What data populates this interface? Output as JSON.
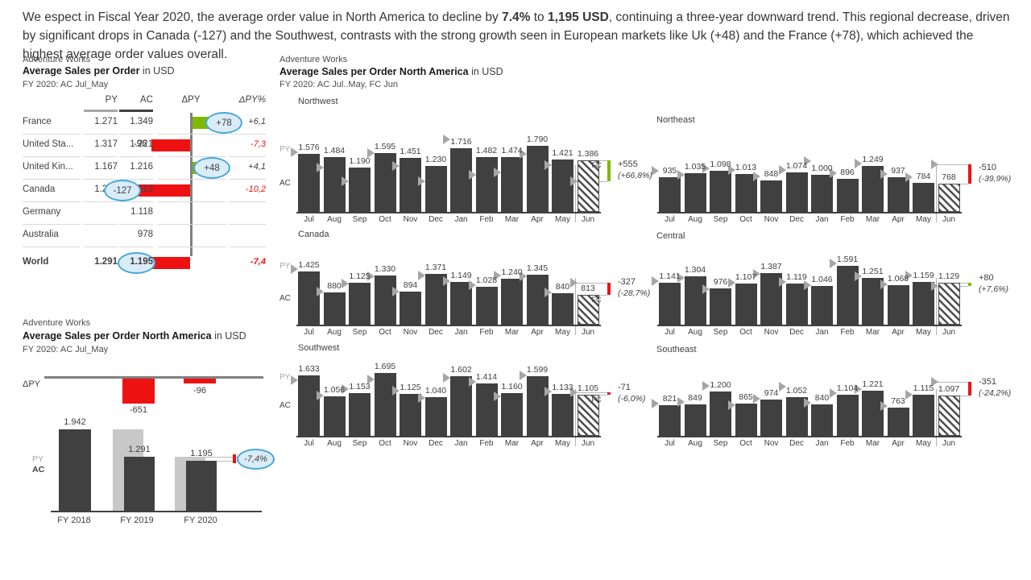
{
  "intro": {
    "segments": [
      {
        "t": "We espect in Fiscal Year 2020, the average order value in North America to decline by ",
        "b": false
      },
      {
        "t": "7.4%",
        "b": true
      },
      {
        "t": " to ",
        "b": false
      },
      {
        "t": "1,195 USD",
        "b": true
      },
      {
        "t": ", continuing a three-year downward trend. This regional decrease, driven by significant drops in Canada (-127) and the Southwest, contrasts with the strong growth seen in European markets like Uk (+48) and the France (+78), which achieved the highest average order values overall.",
        "b": false
      }
    ]
  },
  "colors": {
    "dark": "#404040",
    "py_gray": "#c8c8c8",
    "marker": "#a6a6a6",
    "red": "#ee1111",
    "green": "#7fb800",
    "circle_border": "#4aa8d8",
    "circle_fill": "#daecf8",
    "axis": "#808080",
    "separator": "#d9d9d9",
    "connector": "#b8b8b8",
    "text": "#404040",
    "muted": "#4d4d4d"
  },
  "chart_data": [
    {
      "type": "table",
      "source": "Adventure Works",
      "title": "Average Sales per Order",
      "title_suffix": " in USD",
      "subtitle": "FY 2020: AC Jul_May",
      "columns": [
        "PY",
        "AC",
        "ΔPY",
        "ΔPY%"
      ],
      "rows": [
        {
          "name": "France",
          "py": "1.271",
          "ac": "1.349",
          "delta": 78,
          "delta_label": "+78",
          "pct": "+6,1",
          "circle": "delta",
          "bold": false
        },
        {
          "name": "United Sta...",
          "py": "1.317",
          "ac": "1.221",
          "delta": -96,
          "delta_label": "-96",
          "pct": "-7,3",
          "circle": null,
          "bold": false
        },
        {
          "name": "United Kin...",
          "py": "1.167",
          "ac": "1.216",
          "delta": 48,
          "delta_label": "+48",
          "pct": "+4,1",
          "circle": "delta",
          "bold": false
        },
        {
          "name": "Canada",
          "py": "1.246",
          "ac": "1.119",
          "delta": -127,
          "delta_label": "-127",
          "pct": "-10,2",
          "circle": "delta",
          "bold": false
        },
        {
          "name": "Germany",
          "py": "",
          "ac": "1.118",
          "delta": null,
          "delta_label": "",
          "pct": "",
          "circle": null,
          "bold": false
        },
        {
          "name": "Australia",
          "py": "",
          "ac": "978",
          "delta": null,
          "delta_label": "",
          "pct": "",
          "circle": null,
          "bold": false
        },
        {
          "name": "World",
          "py": "1.291",
          "ac": "1.195",
          "delta": -96,
          "delta_label": "-96",
          "pct": "-7,4",
          "circle": "ac",
          "bold": true
        }
      ]
    },
    {
      "type": "bar",
      "source": "Adventure Works",
      "title": "Average Sales per Order North America",
      "title_suffix": " in USD",
      "subtitle": "FY 2020: AC Jul_May",
      "delta_axis_label": "ΔPY",
      "legend": [
        "PY",
        "AC"
      ],
      "categories": [
        "FY 2018",
        "FY 2019",
        "FY 2020"
      ],
      "py": [
        null,
        1942,
        1291
      ],
      "ac": [
        1942,
        1291,
        1195
      ],
      "delta": [
        null,
        -651,
        -96
      ],
      "delta_labels": [
        "",
        "-651",
        "-96"
      ],
      "annotation": "-7,4%"
    },
    {
      "type": "bar",
      "source": "Adventure Works",
      "title": "Average Sales per Order North America",
      "title_suffix": " in USD",
      "subtitle": "FY 2020: AC Jul..May, FC Jun",
      "x": [
        "Jul",
        "Aug",
        "Sep",
        "Oct",
        "Nov",
        "Dec",
        "Jan",
        "Feb",
        "Mar",
        "Apr",
        "May",
        "Jun"
      ],
      "legend": [
        "PY",
        "AC"
      ],
      "fc_label": "FC",
      "charts": [
        {
          "name": "Northwest",
          "ac": [
            1576,
            1484,
            1190,
            1595,
            1451,
            1230,
            1716,
            1482,
            1474,
            1790,
            1421,
            1386
          ],
          "py": [
            1600,
            1200,
            820,
            1580,
            1230,
            830,
            1960,
            1010,
            1060,
            1570,
            1260,
            831
          ],
          "delta_label": "+555",
          "pct_label": "(+66,8%)",
          "positive": true,
          "show_fc": true,
          "show_legend": true
        },
        {
          "name": "Northeast",
          "ac": [
            935,
            1035,
            1098,
            1013,
            848,
            1074,
            1000,
            896,
            1249,
            937,
            784,
            768
          ],
          "py": [
            1100,
            1000,
            1180,
            1130,
            960,
            1130,
            1360,
            1040,
            1310,
            1020,
            940,
            1278
          ],
          "delta_label": "-510",
          "pct_label": "(-39,9%)",
          "positive": false,
          "show_fc": false,
          "show_legend": false
        },
        {
          "name": "Canada",
          "ac": [
            1425,
            880,
            1125,
            1330,
            894,
            1371,
            1149,
            1028,
            1240,
            1345,
            840,
            813
          ],
          "py": [
            1500,
            900,
            1110,
            1300,
            890,
            1330,
            1170,
            1060,
            1330,
            1310,
            860,
            1140
          ],
          "delta_label": "-327",
          "pct_label": "(-28,7%)",
          "positive": false,
          "show_fc": true,
          "show_legend": true
        },
        {
          "name": "Central",
          "ac": [
            1141,
            1304,
            976,
            1107,
            1387,
            1119,
            1046,
            1591,
            1251,
            1068,
            1159,
            1129
          ],
          "py": [
            1170,
            1260,
            960,
            1130,
            1360,
            1160,
            1060,
            1650,
            1300,
            1090,
            1320,
            1049
          ],
          "delta_label": "+80",
          "pct_label": "(+7,6%)",
          "positive": true,
          "show_fc": false,
          "show_legend": false
        },
        {
          "name": "Southwest",
          "ac": [
            1633,
            1056,
            1153,
            1695,
            1125,
            1040,
            1602,
            1414,
            1160,
            1599,
            1133,
            1105
          ],
          "py": [
            1500,
            1090,
            1260,
            1530,
            1210,
            1030,
            1570,
            1460,
            1070,
            1620,
            1190,
            1176
          ],
          "delta_label": "-71",
          "pct_label": "(-6,0%)",
          "positive": false,
          "show_fc": true,
          "show_legend": true
        },
        {
          "name": "Southeast",
          "ac": [
            821,
            849,
            1200,
            865,
            974,
            1052,
            840,
            1104,
            1221,
            763,
            1115,
            1097
          ],
          "py": [
            870,
            920,
            1350,
            830,
            1000,
            1330,
            890,
            1160,
            1270,
            800,
            1100,
            1448
          ],
          "delta_label": "-351",
          "pct_label": "(-24,2%)",
          "positive": false,
          "show_fc": false,
          "show_legend": false
        }
      ]
    }
  ]
}
